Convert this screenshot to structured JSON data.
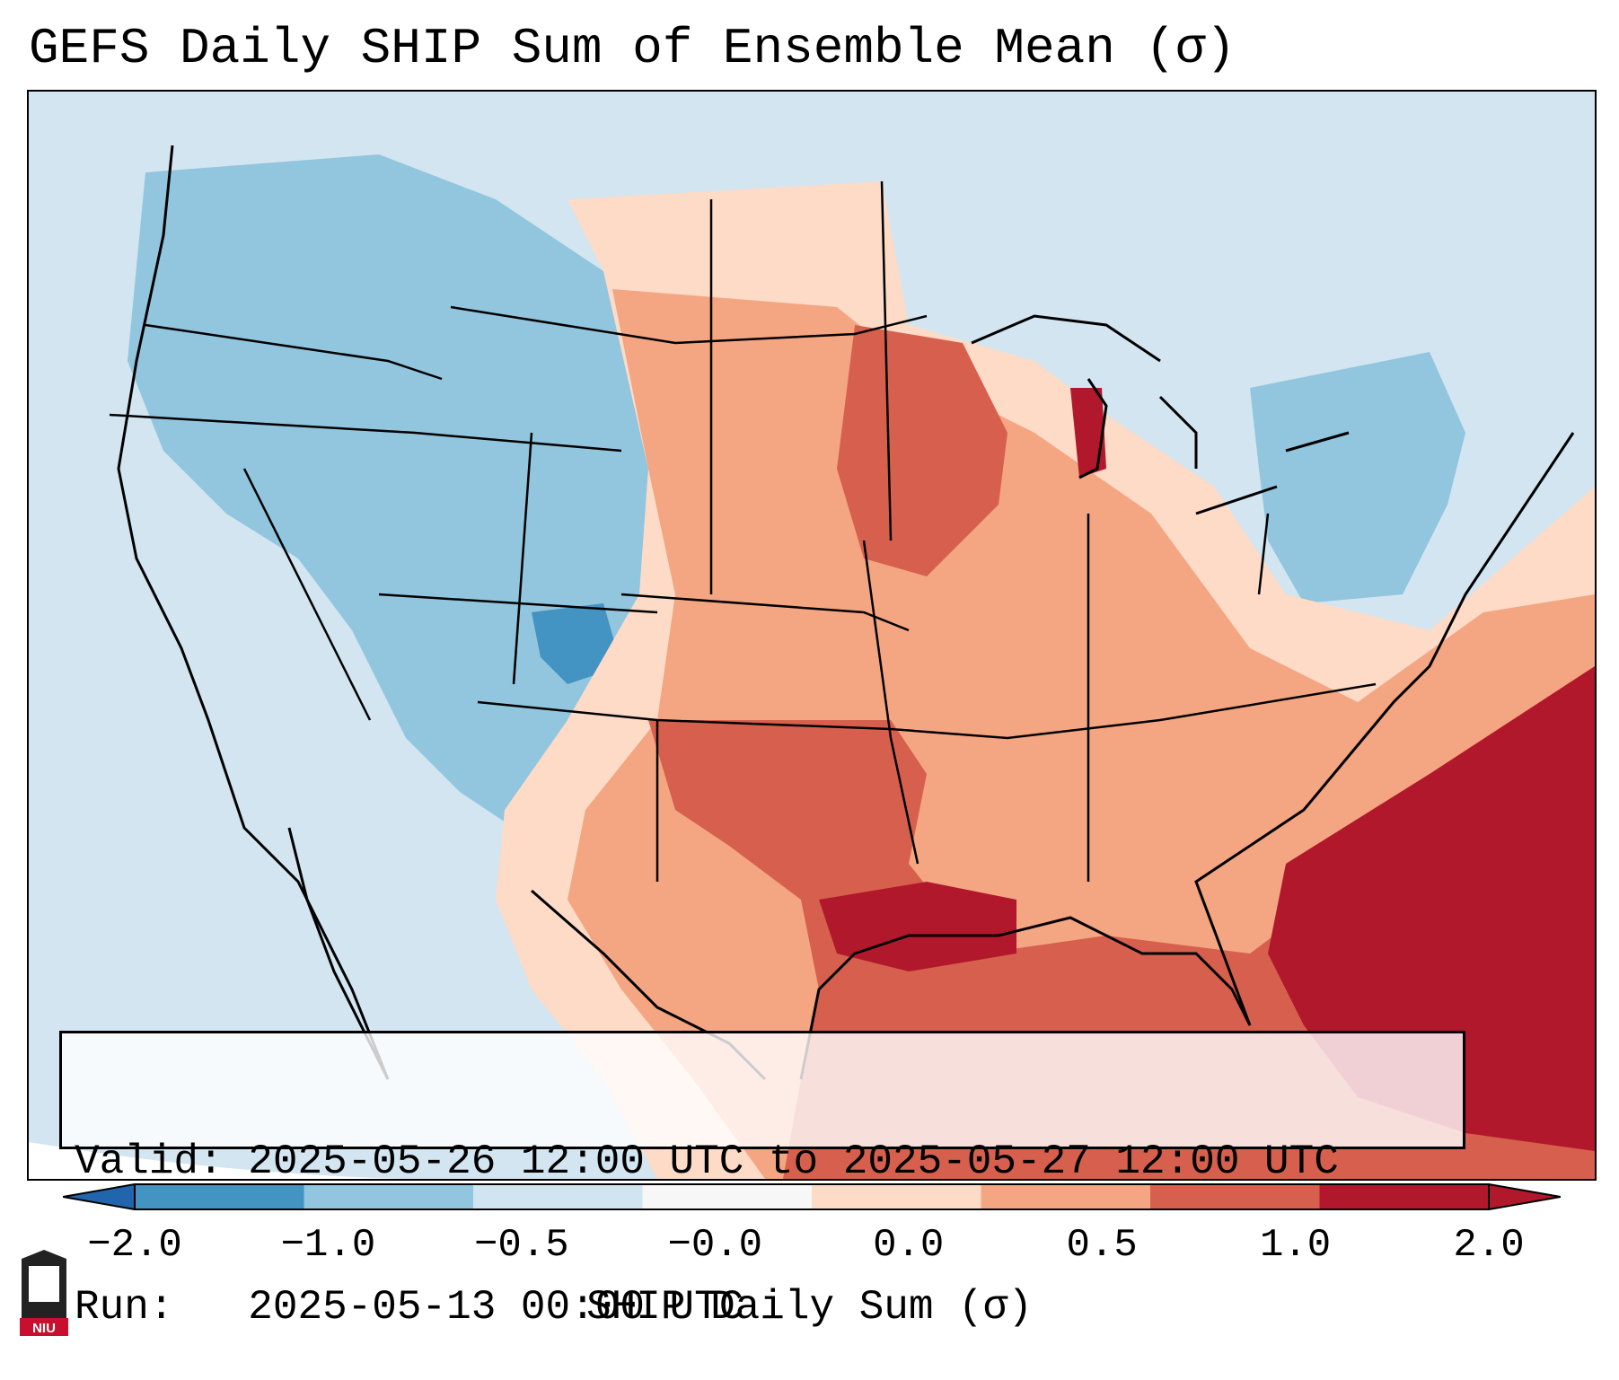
{
  "title": "GEFS Daily SHIP Sum of Ensemble Mean (σ)",
  "info": {
    "valid_label": "Valid:",
    "valid_value": "2025-05-26 12:00 UTC to 2025-05-27 12:00 UTC",
    "run_label": "Run:",
    "run_value": "2025-05-13 00:00 UTC"
  },
  "colorbar": {
    "title": "SHIP Daily Sum (σ)",
    "tick_labels": [
      "−2.0",
      "−1.0",
      "−0.5",
      "−0.0",
      "0.0",
      "0.5",
      "1.0",
      "2.0"
    ],
    "colors": [
      "#4393c3",
      "#92c5de",
      "#d1e5f0",
      "#f7f7f7",
      "#fddbc7",
      "#f4a582",
      "#d6604d",
      "#b2182b"
    ],
    "under_color": "#2166ac",
    "over_color": "#b2182b"
  },
  "logo": {
    "text": "NIU",
    "color": "#c8102e"
  },
  "map": {
    "region": "Contiguous United States",
    "ocean_color": "#d2e5f0"
  }
}
